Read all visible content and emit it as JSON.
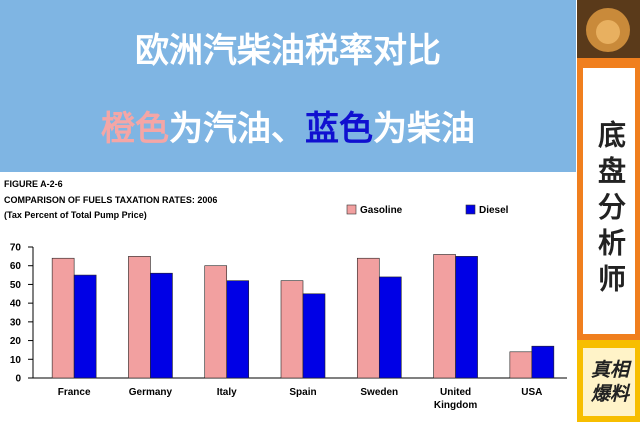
{
  "banner": {
    "title": "欧洲汽柴油税率对比",
    "subtitle_parts": [
      "橙色",
      "为汽油、",
      "蓝色",
      "为柴油"
    ]
  },
  "sidebar": {
    "label": "底盘分析师",
    "tag": "真相爆料"
  },
  "chart_data": {
    "type": "bar",
    "figure": "FIGURE A-2-6",
    "title": "COMPARISON OF FUELS TAXATION RATES: 2006",
    "subtitle": "(Tax Percent of Total Pump Price)",
    "categories": [
      "France",
      "Germany",
      "Italy",
      "Spain",
      "Sweden",
      "United Kingdom",
      "USA"
    ],
    "series": [
      {
        "name": "Gasoline",
        "color": "#f2a0a0",
        "values": [
          64,
          65,
          60,
          52,
          64,
          66,
          14
        ]
      },
      {
        "name": "Diesel",
        "color": "#0000e6",
        "values": [
          55,
          56,
          52,
          45,
          54,
          65,
          17
        ]
      }
    ],
    "ylim": [
      0,
      70
    ],
    "yticks": [
      0,
      10,
      20,
      30,
      40,
      50,
      60,
      70
    ],
    "grid": false
  }
}
